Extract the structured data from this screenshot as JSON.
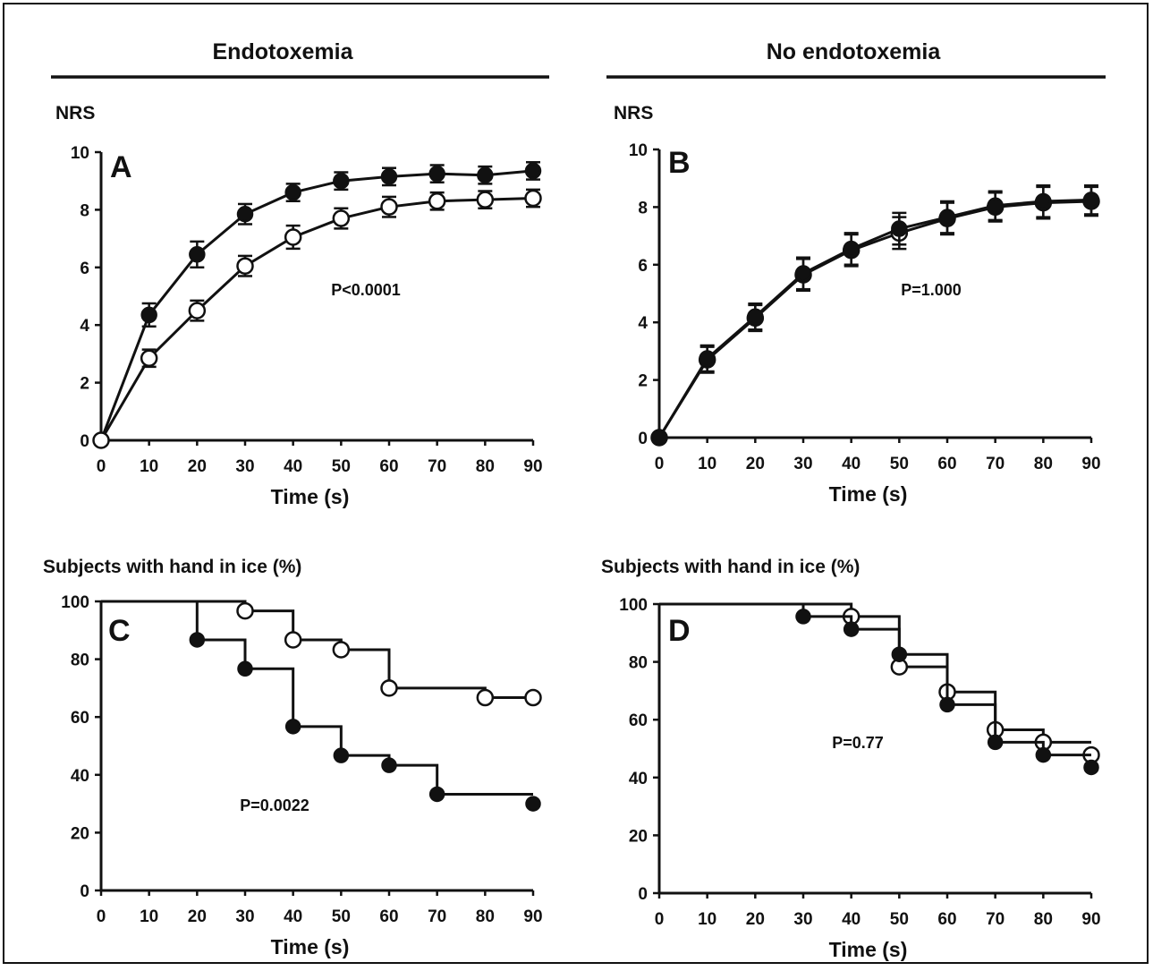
{
  "section_headers": {
    "left": "Endotoxemia",
    "right": "No endotoxemia"
  },
  "chart_data": [
    {
      "panel": "A",
      "type": "line",
      "ylabel": "NRS",
      "xlabel": "Time (s)",
      "xlim": [
        0,
        90
      ],
      "ylim": [
        0,
        10
      ],
      "xticks": [
        0,
        10,
        20,
        30,
        40,
        50,
        60,
        70,
        80,
        90
      ],
      "yticks": [
        0,
        2,
        4,
        6,
        8,
        10
      ],
      "annotation": "P<0.0001",
      "series": [
        {
          "marker": "filled",
          "x": [
            0,
            10,
            20,
            30,
            40,
            50,
            60,
            70,
            80,
            90
          ],
          "y": [
            0,
            4.35,
            6.45,
            7.85,
            8.6,
            9.0,
            9.15,
            9.25,
            9.2,
            9.35
          ],
          "err": [
            0,
            0.4,
            0.45,
            0.35,
            0.3,
            0.3,
            0.3,
            0.3,
            0.3,
            0.3
          ]
        },
        {
          "marker": "open",
          "x": [
            0,
            10,
            20,
            30,
            40,
            50,
            60,
            70,
            80,
            90
          ],
          "y": [
            0,
            2.85,
            4.5,
            6.05,
            7.05,
            7.7,
            8.1,
            8.3,
            8.35,
            8.4
          ],
          "err": [
            0,
            0.3,
            0.35,
            0.35,
            0.4,
            0.35,
            0.35,
            0.3,
            0.3,
            0.3
          ]
        }
      ]
    },
    {
      "panel": "B",
      "type": "line",
      "ylabel": "NRS",
      "xlabel": "Time (s)",
      "xlim": [
        0,
        90
      ],
      "ylim": [
        0,
        10
      ],
      "xticks": [
        0,
        10,
        20,
        30,
        40,
        50,
        60,
        70,
        80,
        90
      ],
      "yticks": [
        0,
        2,
        4,
        6,
        8,
        10
      ],
      "annotation": "P=1.000",
      "series": [
        {
          "marker": "open",
          "x": [
            0,
            10,
            20,
            30,
            40,
            50,
            60,
            70,
            80,
            90
          ],
          "y": [
            0,
            2.7,
            4.15,
            5.65,
            6.5,
            7.1,
            7.6,
            8.0,
            8.15,
            8.2
          ],
          "err": [
            0,
            0.45,
            0.45,
            0.55,
            0.55,
            0.55,
            0.55,
            0.5,
            0.55,
            0.5
          ]
        },
        {
          "marker": "filled",
          "x": [
            0,
            10,
            20,
            30,
            40,
            50,
            60,
            70,
            80,
            90
          ],
          "y": [
            0,
            2.75,
            4.2,
            5.7,
            6.55,
            7.25,
            7.65,
            8.05,
            8.2,
            8.25
          ],
          "err": [
            0,
            0.45,
            0.45,
            0.55,
            0.55,
            0.55,
            0.55,
            0.5,
            0.55,
            0.5
          ]
        }
      ]
    },
    {
      "panel": "C",
      "type": "line",
      "step": true,
      "ylabel": "Subjects with hand in ice (%)",
      "xlabel": "Time (s)",
      "xlim": [
        0,
        90
      ],
      "ylim": [
        0,
        100
      ],
      "xticks": [
        0,
        10,
        20,
        30,
        40,
        50,
        60,
        70,
        80,
        90
      ],
      "yticks": [
        0,
        20,
        40,
        60,
        80,
        100
      ],
      "annotation": "P=0.0022",
      "series": [
        {
          "marker": "open",
          "steps": [
            [
              0,
              100
            ],
            [
              30,
              96.7
            ],
            [
              40,
              86.7
            ],
            [
              50,
              83.3
            ],
            [
              60,
              70
            ],
            [
              80,
              66.7
            ],
            [
              90,
              66.7
            ]
          ],
          "points": [
            [
              30,
              96.7
            ],
            [
              40,
              86.7
            ],
            [
              50,
              83.3
            ],
            [
              60,
              70
            ],
            [
              80,
              66.7
            ],
            [
              90,
              66.7
            ]
          ]
        },
        {
          "marker": "filled",
          "steps": [
            [
              0,
              100
            ],
            [
              20,
              86.7
            ],
            [
              30,
              76.7
            ],
            [
              40,
              56.7
            ],
            [
              50,
              46.7
            ],
            [
              60,
              43.3
            ],
            [
              70,
              33.3
            ],
            [
              90,
              33.3
            ]
          ],
          "points": [
            [
              20,
              86.7
            ],
            [
              30,
              76.7
            ],
            [
              40,
              56.7
            ],
            [
              50,
              46.7
            ],
            [
              60,
              43.3
            ],
            [
              70,
              33.3
            ],
            [
              90,
              30
            ]
          ]
        }
      ]
    },
    {
      "panel": "D",
      "type": "line",
      "step": true,
      "ylabel": "Subjects with hand in ice (%)",
      "xlabel": "Time (s)",
      "xlim": [
        0,
        90
      ],
      "ylim": [
        0,
        100
      ],
      "xticks": [
        0,
        10,
        20,
        30,
        40,
        50,
        60,
        70,
        80,
        90
      ],
      "yticks": [
        0,
        20,
        40,
        60,
        80,
        100
      ],
      "annotation": "P=0.77",
      "series": [
        {
          "marker": "open",
          "steps": [
            [
              0,
              100
            ],
            [
              40,
              95.7
            ],
            [
              50,
              78.3
            ],
            [
              60,
              69.6
            ],
            [
              70,
              56.5
            ],
            [
              80,
              52.2
            ],
            [
              90,
              52.2
            ]
          ],
          "points": [
            [
              40,
              95.7
            ],
            [
              50,
              78.3
            ],
            [
              60,
              69.6
            ],
            [
              70,
              56.5
            ],
            [
              80,
              52.2
            ],
            [
              90,
              47.8
            ]
          ]
        },
        {
          "marker": "filled",
          "steps": [
            [
              0,
              100
            ],
            [
              30,
              95.7
            ],
            [
              40,
              91.3
            ],
            [
              50,
              82.6
            ],
            [
              60,
              65.2
            ],
            [
              70,
              52.2
            ],
            [
              80,
              47.8
            ],
            [
              90,
              47.8
            ]
          ],
          "points": [
            [
              30,
              95.7
            ],
            [
              40,
              91.3
            ],
            [
              50,
              82.6
            ],
            [
              60,
              65.2
            ],
            [
              70,
              52.2
            ],
            [
              80,
              47.8
            ],
            [
              90,
              43.5
            ]
          ]
        }
      ]
    }
  ]
}
